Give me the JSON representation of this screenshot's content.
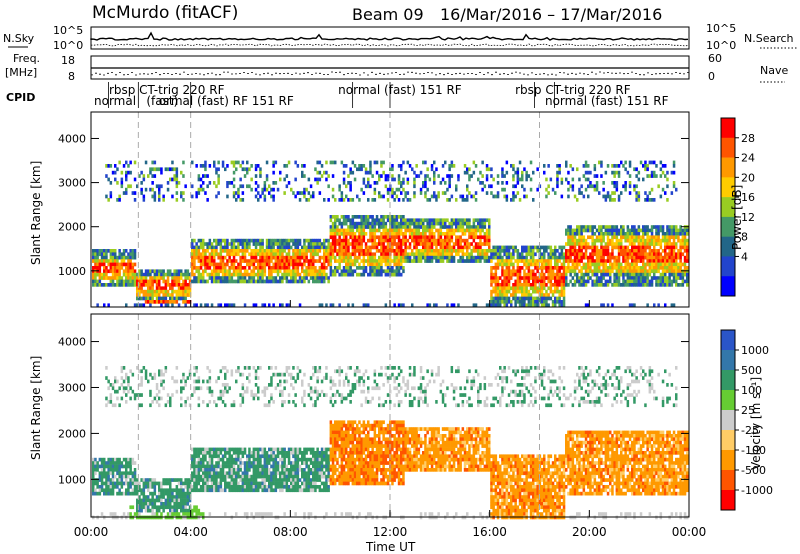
{
  "header": {
    "title": "McMurdo (fitACF)",
    "beam": "Beam 09",
    "date_range": "16/Mar/2016 – 17/Mar/2016"
  },
  "small_panels": {
    "nsky_label": "N.Sky",
    "nsearch_label": "N.Search",
    "freq_label_top": "Freq.",
    "freq_label_unit": "[MHz]",
    "nave_label": "Nave",
    "cpid_label": "CPID",
    "noise_left_ticks": [
      "10^5",
      "10^0"
    ],
    "noise_right_ticks": [
      "10^5",
      "10^0"
    ],
    "freq_left_ticks": [
      "18",
      "8"
    ],
    "freq_right_ticks": [
      "60",
      "0"
    ]
  },
  "cpid_labels": [
    {
      "text": "rbsp CT-trig 220 RF",
      "hour": 0.6,
      "row": 1
    },
    {
      "text": "normal (fast) 151 RF",
      "hour": 9.8,
      "row": 1
    },
    {
      "text": "rbsp CT-trig 220 RF",
      "hour": 16.9,
      "row": 1
    },
    {
      "text": "normal",
      "hour": 0.0,
      "row": 2
    },
    {
      "text": "(fast)",
      "hour": 2.1,
      "row": 2
    },
    {
      "text": "ormal (fast) RF 151 RF",
      "hour": 2.6,
      "row": 2
    },
    {
      "text": "normal (fast) 151 RF",
      "hour": 18.1,
      "row": 2
    }
  ],
  "chart_data": [
    {
      "type": "heatmap",
      "quantity": "Power",
      "ylabel": "Slant Range [km]",
      "ylim": [
        180,
        4600
      ],
      "yticks": [
        1000,
        2000,
        3000,
        4000
      ],
      "xlim": [
        0,
        24
      ],
      "colorbar_label": "Power [dB]",
      "colorbar_ticks": [
        "28",
        "24",
        "20",
        "16",
        "12",
        "8",
        "4"
      ],
      "colorbar_colors": [
        "#ff0000",
        "#ff5500",
        "#ff9900",
        "#ffcc00",
        "#99cc22",
        "#449966",
        "#226688",
        "#2244cc",
        "#0000ff"
      ]
    },
    {
      "type": "heatmap",
      "quantity": "Velocity",
      "ylabel": "Slant Range [km]",
      "ylim": [
        180,
        4600
      ],
      "yticks": [
        1000,
        2000,
        3000,
        4000
      ],
      "xlim": [
        0,
        24
      ],
      "xticks": [
        "00:00",
        "04:00",
        "08:00",
        "12:00",
        "16:00",
        "20:00",
        "00:00"
      ],
      "xlabel": "Time UT",
      "colorbar_label": "Velocity [m s⁻¹]",
      "colorbar_ticks": [
        "1000",
        "500",
        "100",
        "25",
        "-25",
        "-100",
        "-500",
        "-1000"
      ],
      "colorbar_colors": [
        "#2a55c8",
        "#3377aa",
        "#339966",
        "#66cc33",
        "#cccccc",
        "#ffcc66",
        "#ff9900",
        "#ff5500",
        "#ff0000"
      ]
    }
  ]
}
